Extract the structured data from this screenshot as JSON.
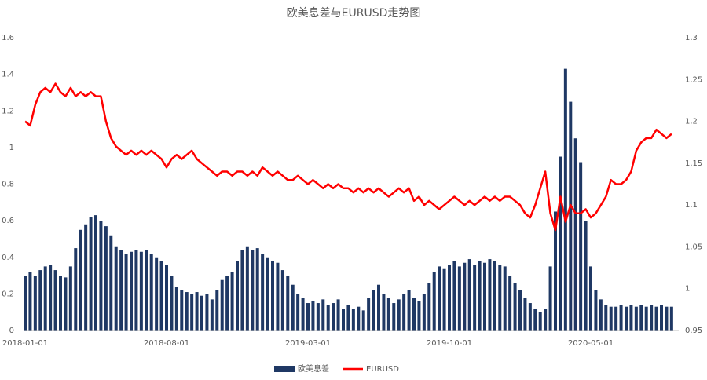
{
  "chart_data": {
    "type": "bar-line",
    "title": "欧美息差与EURUSD走势图",
    "categories": [
      "2018-01-01",
      null,
      null,
      null,
      null,
      null,
      null,
      null,
      null,
      null,
      null,
      null,
      null,
      null,
      null,
      null,
      null,
      null,
      null,
      null,
      null,
      null,
      null,
      null,
      null,
      null,
      null,
      null,
      "2018-08-01",
      null,
      null,
      null,
      null,
      null,
      null,
      null,
      null,
      null,
      null,
      null,
      null,
      null,
      null,
      null,
      null,
      null,
      null,
      null,
      null,
      null,
      null,
      null,
      null,
      null,
      null,
      null,
      "2019-03-01",
      null,
      null,
      null,
      null,
      null,
      null,
      null,
      null,
      null,
      null,
      null,
      null,
      null,
      null,
      null,
      null,
      null,
      null,
      null,
      null,
      null,
      null,
      null,
      null,
      null,
      null,
      null,
      "2019-10-01",
      null,
      null,
      null,
      null,
      null,
      null,
      null,
      null,
      null,
      null,
      null,
      null,
      null,
      null,
      null,
      null,
      null,
      null,
      null,
      null,
      null,
      null,
      null,
      null,
      null,
      null,
      null,
      "2020-05-01",
      null,
      null,
      null,
      null,
      null,
      null,
      null,
      null,
      null,
      null,
      null,
      null,
      null,
      null,
      null,
      null
    ],
    "series": [
      {
        "name": "欧美息差",
        "color": "#1f3864",
        "axis": "y",
        "values": [
          0.3,
          0.32,
          0.3,
          0.33,
          0.35,
          0.36,
          0.33,
          0.3,
          0.29,
          0.35,
          0.45,
          0.55,
          0.58,
          0.62,
          0.63,
          0.6,
          0.57,
          0.52,
          0.46,
          0.44,
          0.42,
          0.43,
          0.44,
          0.43,
          0.44,
          0.42,
          0.4,
          0.38,
          0.36,
          0.3,
          0.24,
          0.22,
          0.21,
          0.2,
          0.21,
          0.19,
          0.2,
          0.17,
          0.22,
          0.28,
          0.3,
          0.32,
          0.38,
          0.44,
          0.46,
          0.44,
          0.45,
          0.42,
          0.4,
          0.38,
          0.37,
          0.33,
          0.3,
          0.25,
          0.2,
          0.18,
          0.15,
          0.16,
          0.15,
          0.17,
          0.14,
          0.15,
          0.17,
          0.12,
          0.14,
          0.12,
          0.13,
          0.11,
          0.18,
          0.22,
          0.25,
          0.2,
          0.18,
          0.15,
          0.17,
          0.2,
          0.22,
          0.18,
          0.16,
          0.2,
          0.26,
          0.32,
          0.35,
          0.34,
          0.36,
          0.38,
          0.35,
          0.37,
          0.39,
          0.36,
          0.38,
          0.37,
          0.39,
          0.38,
          0.36,
          0.35,
          0.3,
          0.26,
          0.22,
          0.18,
          0.15,
          0.12,
          0.1,
          0.12,
          0.35,
          0.65,
          0.95,
          1.43,
          1.25,
          1.05,
          0.92,
          0.6,
          0.35,
          0.22,
          0.17,
          0.14,
          0.13,
          0.13,
          0.14,
          0.13,
          0.14,
          0.13,
          0.14,
          0.13,
          0.14,
          0.13,
          0.14,
          0.13,
          0.13
        ]
      },
      {
        "name": "EURUSD",
        "color": "#ff0000",
        "axis": "y2",
        "values": [
          1.2,
          1.195,
          1.22,
          1.235,
          1.24,
          1.235,
          1.245,
          1.235,
          1.23,
          1.24,
          1.23,
          1.235,
          1.23,
          1.235,
          1.23,
          1.23,
          1.2,
          1.18,
          1.17,
          1.165,
          1.16,
          1.165,
          1.16,
          1.165,
          1.16,
          1.165,
          1.16,
          1.155,
          1.145,
          1.155,
          1.16,
          1.155,
          1.16,
          1.165,
          1.155,
          1.15,
          1.145,
          1.14,
          1.135,
          1.14,
          1.14,
          1.135,
          1.14,
          1.14,
          1.135,
          1.14,
          1.135,
          1.145,
          1.14,
          1.135,
          1.14,
          1.135,
          1.13,
          1.13,
          1.135,
          1.13,
          1.125,
          1.13,
          1.125,
          1.12,
          1.125,
          1.12,
          1.125,
          1.12,
          1.12,
          1.115,
          1.12,
          1.115,
          1.12,
          1.115,
          1.12,
          1.115,
          1.11,
          1.115,
          1.12,
          1.115,
          1.12,
          1.105,
          1.11,
          1.1,
          1.105,
          1.1,
          1.095,
          1.1,
          1.105,
          1.11,
          1.105,
          1.1,
          1.105,
          1.1,
          1.105,
          1.11,
          1.105,
          1.11,
          1.105,
          1.11,
          1.11,
          1.105,
          1.1,
          1.09,
          1.085,
          1.1,
          1.12,
          1.14,
          1.09,
          1.07,
          1.11,
          1.08,
          1.1,
          1.09,
          1.09,
          1.095,
          1.085,
          1.09,
          1.1,
          1.11,
          1.13,
          1.125,
          1.125,
          1.13,
          1.14,
          1.165,
          1.175,
          1.18,
          1.18,
          1.19,
          1.185,
          1.18,
          1.185
        ]
      }
    ],
    "ylim": [
      0,
      1.6
    ],
    "yticks": [
      0,
      0.2,
      0.4,
      0.6,
      0.8,
      1,
      1.2,
      1.4,
      1.6
    ],
    "y2lim": [
      0.95,
      1.3
    ],
    "y2ticks": [
      0.95,
      1,
      1.05,
      1.1,
      1.15,
      1.2,
      1.25,
      1.3
    ],
    "legend": "bottom"
  }
}
